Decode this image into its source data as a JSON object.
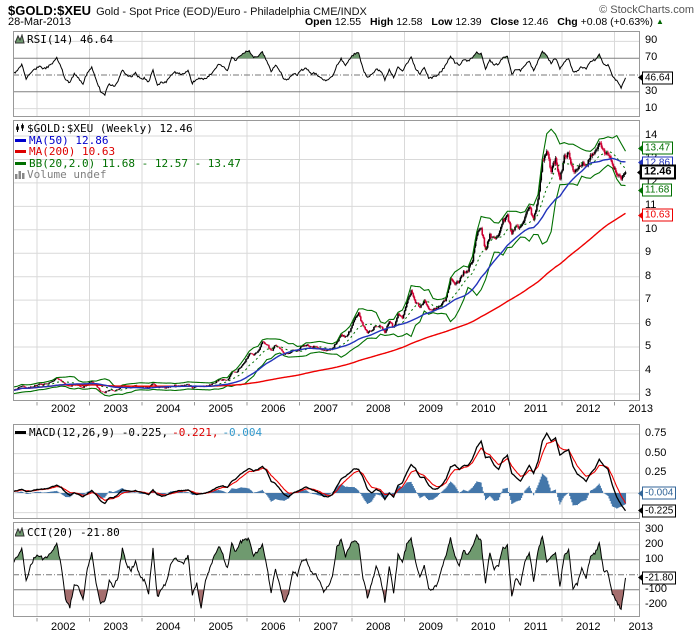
{
  "header": {
    "symbol": "$GOLD:$XEU",
    "description": "Gold - Spot Price (EOD)/Euro - Philadelphia CME/INDX",
    "copyright": "© StockCharts.com",
    "date": "28-Mar-2013",
    "quote": {
      "open_l": "Open",
      "open_v": "12.55",
      "high_l": "High",
      "high_v": "12.58",
      "low_l": "Low",
      "low_v": "12.39",
      "close_l": "Close",
      "close_v": "12.46",
      "chg_l": "Chg",
      "chg_v": "+0.08 (+0.63%)",
      "arrow": "▲"
    }
  },
  "legends": {
    "rsi": "RSI(14) 46.64",
    "price_title": "$GOLD:$XEU (Weekly) 12.46",
    "ma50": "MA(50) 12.86",
    "ma200": "MA(200) 10.63",
    "bb": "BB(20,2.0) 11.68 - 12.57 - 13.47",
    "volume": "Volume undef",
    "macd_main": "MACD(12,26,9) -0.225,",
    "macd_signal": "-0.221,",
    "macd_hist": "-0.004",
    "cci": "CCI(20) -21.80"
  },
  "colors": {
    "candle_up": "#000000",
    "candle_down": "#cc0033",
    "ma50": "#2233bb",
    "ma200": "#ee0000",
    "bb": "#007000",
    "rsi_fill": "#6f9a6f",
    "cci_pos_fill": "#6f9a6f",
    "cci_neg_fill": "#a56e6e",
    "macd_hist": "#4477aa",
    "macd_signal": "#ee0000",
    "macd_line": "#000000",
    "grid": "#d9d9d9",
    "ref": "#808080",
    "dashdot": "#777777",
    "border": "#999999",
    "up_green": "#006600"
  },
  "xaxis": {
    "years": [
      2002,
      2003,
      2004,
      2005,
      2006,
      2007,
      2008,
      2009,
      2010,
      2011,
      2012,
      2013
    ]
  },
  "axes": {
    "rsi": {
      "ticks": [
        [
          "90",
          90
        ],
        [
          "70",
          70
        ],
        [
          "30",
          30
        ],
        [
          "10",
          10
        ]
      ],
      "callouts": [
        [
          "46.64",
          46.64,
          "#000000",
          0
        ]
      ],
      "refs": {
        "faint": [
          90,
          10
        ],
        "solid": [
          70,
          30
        ],
        "dashdot": [
          50
        ]
      }
    },
    "price": {
      "ticks": [
        [
          "14",
          14
        ],
        [
          "13",
          13
        ],
        [
          "12",
          12
        ],
        [
          "11",
          11
        ],
        [
          "10",
          10
        ],
        [
          "9",
          9
        ],
        [
          "8",
          8
        ],
        [
          "7",
          7
        ],
        [
          "6",
          6
        ],
        [
          "5",
          5
        ],
        [
          "4",
          4
        ],
        [
          "3",
          3
        ]
      ],
      "callouts": [
        [
          "13.47",
          13.47,
          "#007000",
          0
        ],
        [
          "12.86",
          12.86,
          "#2233bb",
          0
        ],
        [
          "12.46",
          12.46,
          "#000000",
          1
        ],
        [
          "11.68",
          11.68,
          "#007000",
          0
        ],
        [
          "10.63",
          10.63,
          "#ee0000",
          0
        ]
      ],
      "refs": {
        "faint": [
          14,
          13,
          12,
          11,
          10,
          9,
          8,
          7,
          6,
          5,
          4,
          3
        ],
        "solid": [],
        "dashdot": []
      }
    },
    "macd": {
      "ticks": [
        [
          "0.75",
          0.75
        ],
        [
          "0.50",
          0.5
        ],
        [
          "0.25",
          0.25
        ]
      ],
      "callouts": [
        [
          "-0.004",
          -0.004,
          "#336699",
          0
        ],
        [
          "-0.225",
          -0.225,
          "#000000",
          0
        ]
      ],
      "refs": {
        "faint": [
          0.75,
          0.5,
          0.25,
          0,
          -0.25
        ],
        "solid": [],
        "dashdot": []
      }
    },
    "cci": {
      "ticks": [
        [
          "300",
          300
        ],
        [
          "200",
          200
        ],
        [
          "100",
          100
        ],
        [
          "-100",
          -100
        ],
        [
          "-200",
          -200
        ]
      ],
      "callouts": [
        [
          "-21.80",
          -21.8,
          "#000000",
          0
        ]
      ],
      "refs": {
        "faint": [
          300,
          200,
          -200
        ],
        "solid": [
          100,
          -100
        ],
        "dashdot": [
          0
        ]
      }
    }
  },
  "chart_data": [
    {
      "id": "price",
      "type": "candlestick",
      "title": "$GOLD:$XEU (Weekly) 12.46",
      "start": "2001-07",
      "freq": "monthly",
      "ylim": [
        3,
        14
      ],
      "last_close": 12.46,
      "overlays": [
        {
          "name": "MA(50)",
          "window_weeks": 50,
          "last": 12.86
        },
        {
          "name": "MA(200)",
          "window_weeks": 200,
          "last": 10.63
        },
        {
          "name": "BB(20,2.0)",
          "last_lower": 11.68,
          "last_mid": 12.57,
          "last_upper": 13.47
        }
      ],
      "close": [
        3.15,
        3.22,
        3.35,
        3.25,
        3.28,
        3.35,
        3.42,
        3.4,
        3.46,
        3.52,
        3.68,
        3.55,
        3.38,
        3.32,
        3.42,
        3.36,
        3.28,
        3.42,
        3.52,
        3.35,
        3.12,
        3.06,
        3.18,
        3.12,
        3.18,
        3.36,
        3.32,
        3.3,
        3.36,
        3.3,
        3.32,
        3.28,
        3.46,
        3.28,
        3.26,
        3.26,
        3.32,
        3.36,
        3.36,
        3.36,
        3.42,
        3.26,
        3.32,
        3.32,
        3.32,
        3.38,
        3.46,
        3.6,
        3.6,
        3.56,
        3.92,
        3.92,
        4.16,
        4.38,
        4.72,
        4.66,
        4.82,
        5.22,
        5.12,
        4.82,
        5.1,
        4.92,
        4.72,
        4.72,
        4.86,
        4.82,
        5.02,
        5.1,
        5.0,
        5.0,
        4.96,
        4.86,
        4.86,
        4.92,
        5.22,
        5.5,
        5.42,
        5.7,
        6.18,
        6.42,
        5.92,
        5.62,
        5.72,
        5.92,
        5.88,
        5.62,
        6.1,
        5.82,
        6.38,
        6.22,
        6.88,
        7.38,
        6.92,
        6.72,
        6.98,
        6.62,
        6.62,
        6.66,
        6.82,
        7.08,
        7.88,
        7.72,
        7.82,
        8.18,
        8.28,
        8.72,
        9.78,
        10.08,
        9.12,
        9.78,
        9.62,
        9.72,
        10.38,
        10.58,
        9.82,
        10.18,
        10.08,
        10.48,
        10.98,
        10.42,
        11.28,
        12.92,
        13.38,
        12.52,
        13.02,
        12.12,
        13.08,
        13.28,
        12.52,
        12.62,
        12.82,
        12.72,
        13.18,
        13.32,
        13.72,
        13.32,
        13.28,
        12.72,
        12.42,
        12.22,
        12.46
      ]
    },
    {
      "id": "rsi",
      "type": "line",
      "params": "RSI(14)",
      "last": 46.64,
      "start": "2001-07",
      "freq": "monthly",
      "ylim": [
        0,
        100
      ],
      "bands": [
        70,
        30
      ],
      "values": [
        52,
        55,
        62,
        46,
        52,
        57,
        60,
        57,
        60,
        64,
        71,
        59,
        44,
        41,
        51,
        46,
        40,
        53,
        59,
        45,
        31,
        27,
        40,
        36,
        42,
        56,
        50,
        48,
        52,
        46,
        46,
        41,
        56,
        39,
        41,
        42,
        49,
        53,
        52,
        51,
        55,
        40,
        46,
        46,
        45,
        50,
        55,
        63,
        60,
        55,
        71,
        67,
        74,
        77,
        79,
        70,
        73,
        77,
        67,
        54,
        62,
        55,
        44,
        46,
        52,
        50,
        56,
        58,
        52,
        52,
        48,
        43,
        44,
        48,
        61,
        69,
        62,
        70,
        75,
        76,
        57,
        47,
        51,
        57,
        55,
        44,
        56,
        47,
        60,
        55,
        63,
        71,
        58,
        51,
        58,
        47,
        47,
        50,
        55,
        62,
        73,
        65,
        62,
        68,
        67,
        70,
        77,
        75,
        57,
        68,
        62,
        63,
        71,
        72,
        51,
        57,
        55,
        62,
        66,
        55,
        67,
        78,
        73,
        64,
        70,
        58,
        66,
        70,
        54,
        55,
        60,
        57,
        66,
        68,
        74,
        63,
        62,
        49,
        43,
        35,
        46.64
      ]
    },
    {
      "id": "macd",
      "type": "line+histogram",
      "params": "MACD(12,26,9)",
      "start": "2001-07",
      "freq": "monthly",
      "ylim": [
        -0.33,
        0.88
      ],
      "last_macd": -0.225,
      "last_signal": -0.221,
      "last_hist": -0.004,
      "macd": [
        0.02,
        0.03,
        0.05,
        0.02,
        0.02,
        0.04,
        0.05,
        0.05,
        0.06,
        0.08,
        0.1,
        0.07,
        0.01,
        -0.03,
        0.0,
        -0.02,
        -0.05,
        -0.01,
        0.03,
        -0.02,
        -0.1,
        -0.13,
        -0.06,
        -0.06,
        -0.02,
        0.04,
        0.03,
        0.02,
        0.03,
        0.01,
        0.0,
        -0.02,
        0.04,
        -0.02,
        -0.04,
        -0.03,
        0.0,
        0.02,
        0.03,
        0.03,
        0.04,
        0.0,
        -0.02,
        -0.01,
        0.0,
        0.02,
        0.05,
        0.08,
        0.09,
        0.07,
        0.15,
        0.18,
        0.24,
        0.28,
        0.31,
        0.28,
        0.3,
        0.34,
        0.28,
        0.15,
        0.12,
        0.05,
        -0.02,
        -0.05,
        0.0,
        0.02,
        0.05,
        0.08,
        0.05,
        0.03,
        0.0,
        -0.04,
        -0.05,
        -0.02,
        0.08,
        0.18,
        0.21,
        0.26,
        0.31,
        0.3,
        0.2,
        0.05,
        0.0,
        0.05,
        0.02,
        -0.08,
        0.0,
        -0.05,
        0.1,
        0.13,
        0.26,
        0.36,
        0.31,
        0.2,
        0.2,
        0.1,
        0.05,
        0.05,
        0.1,
        0.18,
        0.33,
        0.36,
        0.3,
        0.35,
        0.35,
        0.43,
        0.58,
        0.66,
        0.45,
        0.46,
        0.35,
        0.3,
        0.43,
        0.48,
        0.25,
        0.2,
        0.15,
        0.25,
        0.35,
        0.25,
        0.4,
        0.66,
        0.76,
        0.66,
        0.7,
        0.48,
        0.52,
        0.55,
        0.34,
        0.24,
        0.2,
        0.15,
        0.25,
        0.31,
        0.43,
        0.35,
        0.3,
        0.1,
        -0.05,
        -0.15,
        -0.225
      ]
    },
    {
      "id": "cci",
      "type": "line",
      "params": "CCI(20)",
      "last": -21.8,
      "start": "2001-07",
      "freq": "monthly",
      "ylim": [
        -280,
        350
      ],
      "bands": [
        100,
        -100
      ],
      "values": [
        80,
        120,
        180,
        -40,
        60,
        120,
        130,
        100,
        120,
        160,
        210,
        60,
        -160,
        -220,
        -60,
        -80,
        -170,
        40,
        150,
        -60,
        -190,
        -180,
        -40,
        -80,
        -20,
        170,
        60,
        30,
        90,
        -10,
        -40,
        -120,
        170,
        -150,
        -90,
        -60,
        60,
        110,
        90,
        70,
        130,
        -130,
        -60,
        -230,
        -40,
        40,
        120,
        190,
        130,
        40,
        210,
        150,
        220,
        230,
        240,
        120,
        160,
        200,
        60,
        -120,
        40,
        -80,
        -190,
        -130,
        20,
        0,
        90,
        110,
        20,
        10,
        -40,
        -110,
        -80,
        -20,
        180,
        230,
        120,
        190,
        230,
        210,
        -20,
        -150,
        -60,
        60,
        -20,
        -180,
        60,
        -120,
        130,
        90,
        200,
        240,
        90,
        -20,
        60,
        -90,
        -100,
        -60,
        40,
        130,
        250,
        130,
        60,
        160,
        130,
        180,
        260,
        220,
        -60,
        150,
        40,
        60,
        180,
        190,
        -140,
        -20,
        -60,
        90,
        150,
        -40,
        160,
        260,
        90,
        120,
        150,
        -80,
        130,
        160,
        -90,
        -60,
        40,
        -20,
        120,
        140,
        210,
        30,
        20,
        -130,
        -180,
        -230,
        -21.8
      ]
    }
  ]
}
